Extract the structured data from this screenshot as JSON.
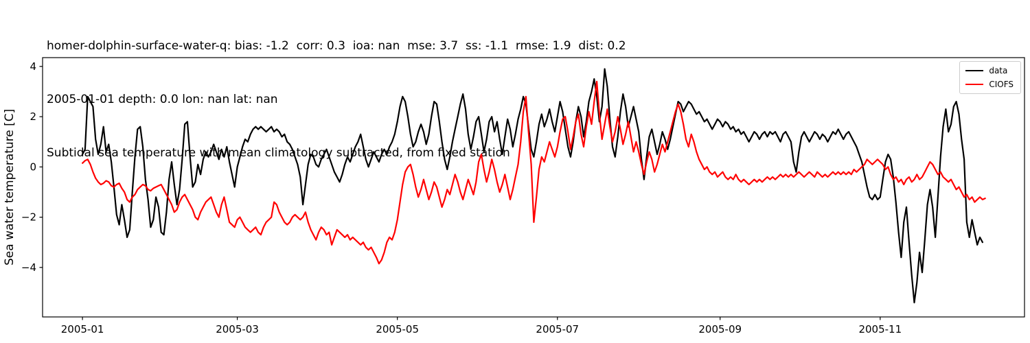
{
  "titles": [
    "homer-dolphin-surface-water-q: bias: -1.2  corr: 0.3  ioa: nan  mse: 3.7  ss: -1.1  rmse: 1.9  dist: 0.2",
    "2005-01-01 depth: 0.0 lon: nan lat: nan",
    "Subtidal sea temperature with mean climatology subtracted, from fixed station"
  ],
  "chart_data": {
    "type": "line",
    "title": "Subtidal sea temperature with mean climatology subtracted, from fixed station",
    "xlabel": "",
    "ylabel": "Sea water temperature [C]",
    "x_unit": "days since 2005-01-01",
    "xlim": [
      -15.2,
      359
    ],
    "ylim": [
      -5.97,
      4.35
    ],
    "grid": false,
    "legend_position": "upper right",
    "x_ticks": [
      {
        "value": 0,
        "label": "2005-01"
      },
      {
        "value": 59,
        "label": "2005-03"
      },
      {
        "value": 120,
        "label": "2005-05"
      },
      {
        "value": 181,
        "label": "2005-07"
      },
      {
        "value": 243,
        "label": "2005-09"
      },
      {
        "value": 304,
        "label": "2005-11"
      }
    ],
    "y_ticks": [
      {
        "value": -4,
        "label": "−4"
      },
      {
        "value": -2,
        "label": "−2"
      },
      {
        "value": 0,
        "label": "0"
      },
      {
        "value": 2,
        "label": "2"
      },
      {
        "value": 4,
        "label": "4"
      }
    ],
    "legend": [
      {
        "name": "data",
        "color": "#000000"
      },
      {
        "name": "CIOFS",
        "color": "#ff0000"
      }
    ],
    "series": [
      {
        "name": "data",
        "color": "#000000",
        "x_start": 0,
        "x_step": 1,
        "values": [
          0.5,
          0.7,
          2.8,
          2.6,
          2.4,
          1.1,
          0.5,
          0.9,
          1.6,
          0.6,
          0.9,
          0.2,
          -0.8,
          -1.9,
          -2.3,
          -1.5,
          -2.1,
          -2.8,
          -2.5,
          -1.0,
          0.4,
          1.5,
          1.6,
          0.8,
          -0.5,
          -1.3,
          -2.4,
          -2.1,
          -1.2,
          -1.6,
          -2.6,
          -2.7,
          -1.8,
          -0.5,
          0.2,
          -0.7,
          -1.5,
          -0.9,
          0.3,
          1.7,
          1.8,
          0.4,
          -0.8,
          -0.6,
          0.1,
          -0.3,
          0.3,
          0.6,
          0.4,
          0.6,
          0.9,
          0.6,
          0.3,
          0.7,
          0.4,
          0.8,
          0.2,
          -0.3,
          -0.8,
          0.0,
          0.4,
          0.8,
          1.1,
          1.0,
          1.3,
          1.5,
          1.6,
          1.5,
          1.6,
          1.5,
          1.4,
          1.5,
          1.6,
          1.4,
          1.5,
          1.4,
          1.2,
          1.3,
          1.0,
          0.9,
          0.7,
          0.4,
          0.1,
          -0.4,
          -1.5,
          -0.7,
          0.1,
          0.5,
          0.4,
          0.1,
          0.0,
          0.3,
          0.5,
          0.7,
          0.4,
          0.1,
          -0.2,
          -0.4,
          -0.6,
          -0.3,
          0.1,
          0.4,
          0.2,
          0.5,
          0.8,
          1.0,
          1.3,
          0.8,
          0.3,
          0.0,
          0.3,
          0.6,
          0.4,
          0.2,
          0.5,
          0.7,
          0.5,
          0.8,
          1.0,
          1.3,
          1.8,
          2.4,
          2.8,
          2.6,
          2.0,
          1.3,
          0.8,
          1.0,
          1.4,
          1.7,
          1.4,
          0.9,
          1.3,
          2.0,
          2.6,
          2.5,
          1.8,
          1.0,
          0.3,
          -0.1,
          0.4,
          1.0,
          1.5,
          2.0,
          2.5,
          2.9,
          2.3,
          1.3,
          0.7,
          1.2,
          1.8,
          2.0,
          1.3,
          0.6,
          1.1,
          1.8,
          2.0,
          1.4,
          1.8,
          1.1,
          0.5,
          1.2,
          1.9,
          1.5,
          0.8,
          1.3,
          1.9,
          2.3,
          2.8,
          2.5,
          1.6,
          0.7,
          0.4,
          1.0,
          1.7,
          2.1,
          1.6,
          1.9,
          2.3,
          1.8,
          1.4,
          2.0,
          2.6,
          2.2,
          1.5,
          0.8,
          0.4,
          1.0,
          1.8,
          2.4,
          2.0,
          1.2,
          1.8,
          2.6,
          3.0,
          3.5,
          2.8,
          1.8,
          2.4,
          3.9,
          3.2,
          1.9,
          0.8,
          0.4,
          1.2,
          2.2,
          2.9,
          2.4,
          1.6,
          2.0,
          2.4,
          1.9,
          1.4,
          0.3,
          -0.5,
          0.4,
          1.2,
          1.5,
          1.0,
          0.5,
          0.9,
          1.4,
          1.1,
          0.7,
          1.1,
          1.6,
          2.1,
          2.6,
          2.5,
          2.2,
          2.4,
          2.6,
          2.5,
          2.3,
          2.1,
          2.2,
          2.0,
          1.8,
          1.9,
          1.7,
          1.5,
          1.7,
          1.9,
          1.8,
          1.6,
          1.8,
          1.7,
          1.5,
          1.6,
          1.4,
          1.5,
          1.3,
          1.4,
          1.2,
          1.0,
          1.2,
          1.4,
          1.3,
          1.1,
          1.3,
          1.4,
          1.2,
          1.4,
          1.3,
          1.4,
          1.2,
          1.0,
          1.3,
          1.4,
          1.2,
          1.0,
          0.2,
          -0.2,
          0.6,
          1.2,
          1.4,
          1.2,
          1.0,
          1.2,
          1.4,
          1.3,
          1.1,
          1.3,
          1.2,
          1.0,
          1.2,
          1.4,
          1.3,
          1.5,
          1.3,
          1.1,
          1.3,
          1.4,
          1.2,
          1.0,
          0.8,
          0.5,
          0.2,
          -0.3,
          -0.8,
          -1.2,
          -1.3,
          -1.1,
          -1.3,
          -1.2,
          -0.5,
          0.2,
          0.5,
          0.3,
          -0.4,
          -1.4,
          -2.6,
          -3.6,
          -2.2,
          -1.6,
          -3.0,
          -4.3,
          -5.4,
          -4.6,
          -3.4,
          -4.2,
          -2.9,
          -1.5,
          -0.9,
          -1.6,
          -2.8,
          -1.2,
          0.4,
          1.6,
          2.3,
          1.4,
          1.7,
          2.4,
          2.6,
          2.1,
          1.1,
          0.3,
          -2.2,
          -2.8,
          -2.1,
          -2.6,
          -3.1,
          -2.8,
          -3.0
        ]
      },
      {
        "name": "CIOFS",
        "color": "#ff0000",
        "x_start": 0,
        "x_step": 1,
        "values": [
          0.15,
          0.25,
          0.3,
          0.1,
          -0.2,
          -0.45,
          -0.6,
          -0.7,
          -0.65,
          -0.55,
          -0.6,
          -0.75,
          -0.8,
          -0.7,
          -0.65,
          -0.85,
          -1.0,
          -1.3,
          -1.4,
          -1.2,
          -1.1,
          -0.9,
          -0.8,
          -0.7,
          -0.75,
          -0.9,
          -0.95,
          -0.85,
          -0.8,
          -0.75,
          -0.7,
          -0.9,
          -1.1,
          -1.3,
          -1.5,
          -1.8,
          -1.7,
          -1.4,
          -1.2,
          -1.1,
          -1.3,
          -1.5,
          -1.7,
          -2.0,
          -2.1,
          -1.8,
          -1.6,
          -1.4,
          -1.3,
          -1.2,
          -1.5,
          -1.8,
          -2.0,
          -1.5,
          -1.2,
          -1.7,
          -2.2,
          -2.3,
          -2.4,
          -2.1,
          -2.0,
          -2.2,
          -2.4,
          -2.5,
          -2.6,
          -2.5,
          -2.4,
          -2.6,
          -2.7,
          -2.4,
          -2.2,
          -2.1,
          -2.0,
          -1.4,
          -1.5,
          -1.8,
          -2.0,
          -2.2,
          -2.3,
          -2.2,
          -2.0,
          -1.9,
          -2.0,
          -2.1,
          -2.0,
          -1.8,
          -2.2,
          -2.5,
          -2.7,
          -2.9,
          -2.6,
          -2.4,
          -2.5,
          -2.7,
          -2.6,
          -3.1,
          -2.8,
          -2.5,
          -2.6,
          -2.7,
          -2.8,
          -2.7,
          -2.9,
          -2.8,
          -2.9,
          -3.0,
          -3.1,
          -3.0,
          -3.2,
          -3.3,
          -3.2,
          -3.4,
          -3.6,
          -3.85,
          -3.7,
          -3.4,
          -3.0,
          -2.8,
          -2.9,
          -2.6,
          -2.1,
          -1.4,
          -0.7,
          -0.2,
          0.0,
          0.1,
          -0.3,
          -0.8,
          -1.2,
          -0.9,
          -0.5,
          -0.9,
          -1.3,
          -1.0,
          -0.6,
          -0.8,
          -1.2,
          -1.6,
          -1.3,
          -0.9,
          -1.1,
          -0.7,
          -0.3,
          -0.6,
          -1.0,
          -1.3,
          -0.9,
          -0.5,
          -0.8,
          -1.1,
          -0.6,
          0.2,
          0.5,
          -0.1,
          -0.6,
          -0.2,
          0.3,
          -0.1,
          -0.6,
          -1.0,
          -0.7,
          -0.3,
          -0.8,
          -1.3,
          -0.9,
          -0.4,
          0.1,
          1.0,
          2.2,
          2.8,
          1.4,
          0.1,
          -2.2,
          -1.2,
          -0.1,
          0.4,
          0.2,
          0.6,
          1.0,
          0.7,
          0.4,
          0.8,
          1.4,
          1.9,
          2.0,
          1.4,
          0.7,
          1.2,
          1.8,
          2.1,
          1.3,
          0.8,
          1.6,
          2.2,
          1.7,
          2.6,
          3.4,
          2.1,
          1.1,
          1.7,
          2.3,
          1.6,
          1.0,
          1.4,
          2.0,
          1.5,
          0.9,
          1.3,
          1.8,
          1.2,
          0.6,
          1.0,
          0.6,
          0.1,
          -0.3,
          0.2,
          0.6,
          0.3,
          -0.2,
          0.1,
          0.5,
          0.9,
          0.6,
          1.0,
          1.4,
          1.8,
          2.2,
          2.5,
          2.2,
          1.7,
          1.1,
          0.8,
          1.3,
          1.0,
          0.6,
          0.3,
          0.1,
          -0.1,
          0.0,
          -0.2,
          -0.3,
          -0.2,
          -0.4,
          -0.3,
          -0.2,
          -0.4,
          -0.5,
          -0.4,
          -0.5,
          -0.3,
          -0.5,
          -0.6,
          -0.5,
          -0.6,
          -0.7,
          -0.6,
          -0.5,
          -0.6,
          -0.5,
          -0.6,
          -0.5,
          -0.4,
          -0.5,
          -0.4,
          -0.5,
          -0.4,
          -0.3,
          -0.4,
          -0.3,
          -0.4,
          -0.3,
          -0.4,
          -0.3,
          -0.2,
          -0.3,
          -0.4,
          -0.3,
          -0.2,
          -0.3,
          -0.4,
          -0.2,
          -0.3,
          -0.4,
          -0.3,
          -0.4,
          -0.3,
          -0.2,
          -0.3,
          -0.2,
          -0.3,
          -0.2,
          -0.3,
          -0.2,
          -0.3,
          -0.1,
          -0.2,
          -0.1,
          0.0,
          0.1,
          0.3,
          0.2,
          0.1,
          0.2,
          0.3,
          0.2,
          0.1,
          -0.1,
          0.0,
          -0.3,
          -0.5,
          -0.4,
          -0.6,
          -0.5,
          -0.7,
          -0.5,
          -0.4,
          -0.6,
          -0.5,
          -0.3,
          -0.5,
          -0.4,
          -0.2,
          0.0,
          0.2,
          0.1,
          -0.1,
          -0.3,
          -0.2,
          -0.4,
          -0.5,
          -0.6,
          -0.5,
          -0.7,
          -0.9,
          -0.8,
          -1.0,
          -1.2,
          -1.1,
          -1.3,
          -1.2,
          -1.4,
          -1.3,
          -1.2,
          -1.3,
          -1.25
        ]
      }
    ]
  }
}
